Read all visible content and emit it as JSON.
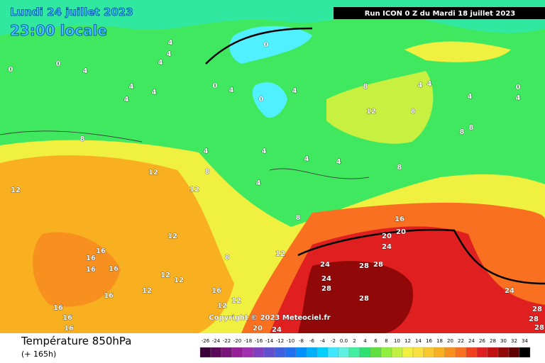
{
  "header": {
    "date": "Lundi 24 juillet 2023",
    "time": "23:00 locale",
    "run": "Run ICON 0 Z du Mardi 18 juillet 2023"
  },
  "copyright": "Copyright © 2023 Meteociel.fr",
  "footer": {
    "title": "Température 850hPa",
    "lead": "(+ 165h)"
  },
  "legend": {
    "labels": [
      "-26",
      "-24",
      "-22",
      "-20",
      "-18",
      "-16",
      "-14",
      "-12",
      "-10",
      "-8",
      "-6",
      "-4",
      "-2",
      "0.0",
      "2",
      "4",
      "6",
      "8",
      "10",
      "12",
      "14",
      "16",
      "18",
      "20",
      "22",
      "24",
      "26",
      "28",
      "30",
      "32",
      "34"
    ],
    "colors": [
      "#3a003a",
      "#5a0a5a",
      "#7a147a",
      "#961e96",
      "#a030b0",
      "#8040c0",
      "#6050d0",
      "#4060e0",
      "#2070f0",
      "#0090ff",
      "#00b0ff",
      "#00d0ff",
      "#40e8ff",
      "#60f0e0",
      "#40f0a0",
      "#30e070",
      "#60e040",
      "#90f040",
      "#c0f040",
      "#f0f040",
      "#f8e040",
      "#f8c830",
      "#f8b020",
      "#f89020",
      "#f87020",
      "#f04020",
      "#e02020",
      "#c01010",
      "#900808",
      "#600000",
      "#000000"
    ]
  },
  "map_labels": [
    "0",
    "4",
    "4",
    "4",
    "4",
    "0",
    "0",
    "4",
    "4",
    "4",
    "0",
    "4",
    "0",
    "4",
    "8",
    "12",
    "8",
    "4",
    "4",
    "4",
    "0",
    "4",
    "8",
    "8",
    "8",
    "4",
    "4",
    "4",
    "4",
    "8",
    "12",
    "8",
    "12",
    "12",
    "4",
    "8",
    "16",
    "20",
    "20",
    "24",
    "12",
    "12",
    "8",
    "16",
    "16",
    "16",
    "16",
    "24",
    "28",
    "28",
    "24",
    "12",
    "12",
    "28",
    "12",
    "16",
    "16",
    "28",
    "24",
    "12",
    "12",
    "16",
    "16",
    "16",
    "20",
    "24",
    "28",
    "28",
    "28"
  ]
}
